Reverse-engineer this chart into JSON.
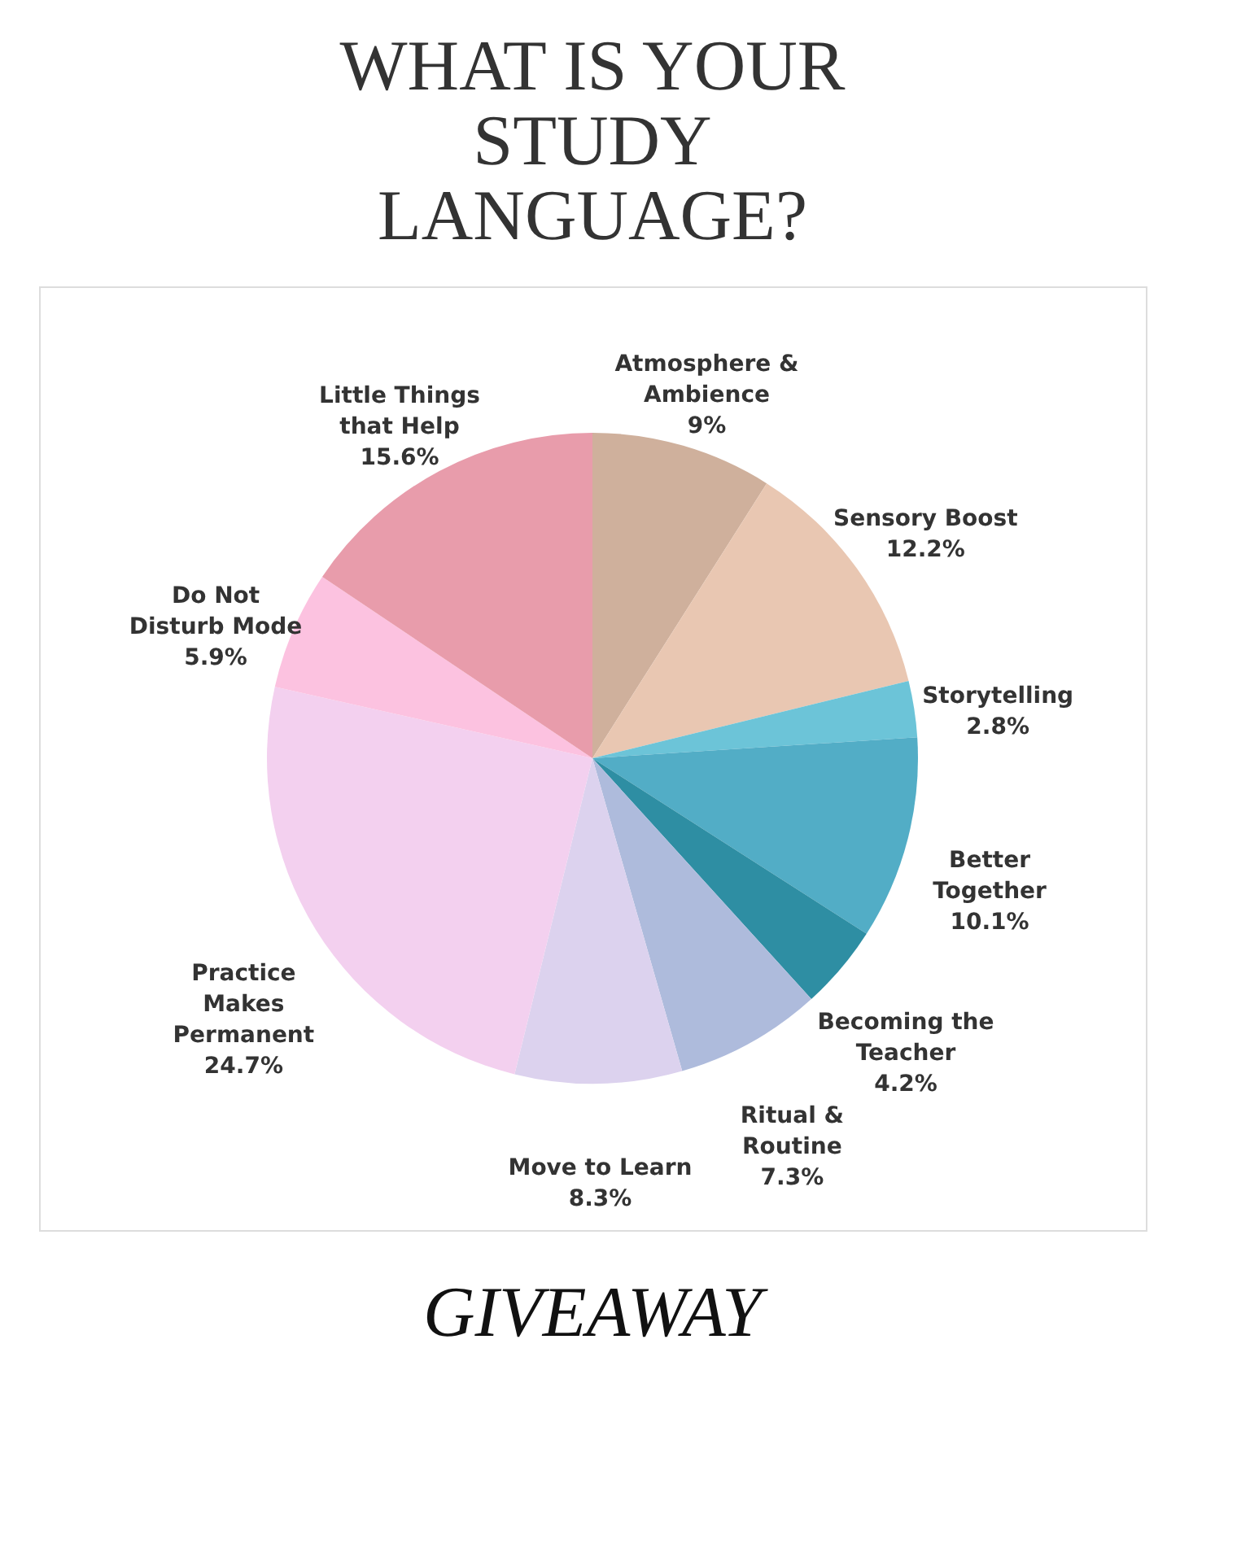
{
  "chart_data": {
    "type": "pie",
    "title": "WHAT IS YOUR STUDY LANGUAGE?",
    "categories": [
      "Atmosphere & Ambience",
      "Sensory Boost",
      "Storytelling",
      "Better Together",
      "Becoming the Teacher",
      "Ritual & Routine",
      "Move to Learn",
      "Practice Makes Permanent",
      "Do Not Disturb Mode",
      "Little Things that Help"
    ],
    "values": [
      9,
      12.2,
      2.8,
      10.1,
      4.2,
      7.3,
      8.3,
      24.7,
      5.9,
      15.6
    ],
    "value_labels": [
      "9%",
      "12.2%",
      "2.8%",
      "10.1%",
      "4.2%",
      "7.3%",
      "8.3%",
      "24.7%",
      "5.9%",
      "15.6%"
    ],
    "colors": [
      "#cfb09c",
      "#e9c7b2",
      "#6cc4d8",
      "#52adc6",
      "#2e8ea3",
      "#aebbdc",
      "#dcd2ee",
      "#f3d0ef",
      "#fcc2e0",
      "#e89cab"
    ],
    "annotations": [
      "GIVEAWAY"
    ],
    "legend": false
  }
}
